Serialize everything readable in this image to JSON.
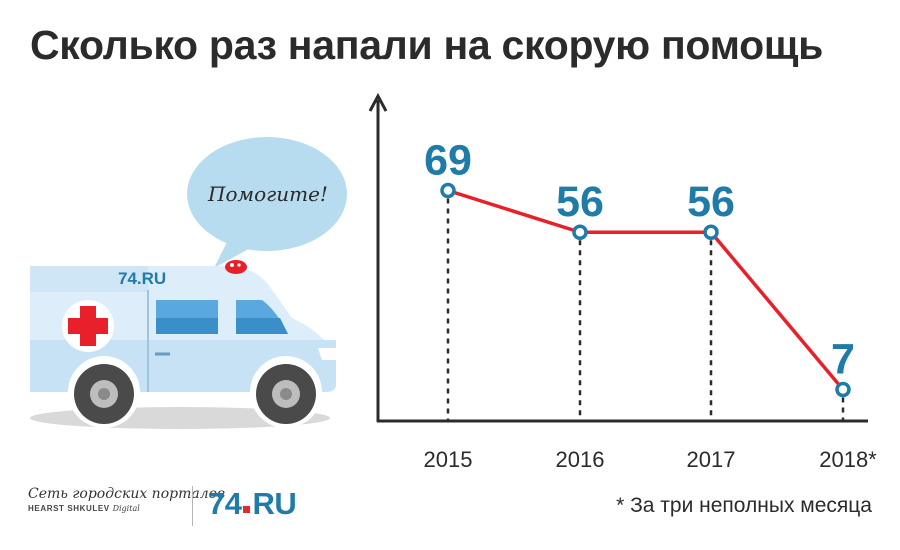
{
  "title": "Сколько раз напали на скорую помощь",
  "speech_bubble": {
    "text": "Помогите!"
  },
  "ambulance": {
    "logo_text": "74.RU"
  },
  "branding": {
    "network_name": "Сеть городских порталов",
    "holding_name": "HEARST SHKULEV",
    "holding_suffix": "Digital",
    "logo_main": "74",
    "logo_tld": "RU"
  },
  "footnote": "* За три неполных месяца",
  "colors": {
    "line": "#e8202a",
    "marker": "#1f7ba8",
    "value_label": "#1f7ba8",
    "axis": "#2b2b2b"
  },
  "chart_data": {
    "type": "line",
    "categories": [
      "2015",
      "2016",
      "2017",
      "2018*"
    ],
    "series": [
      {
        "values": [
          69,
          56,
          56,
          7
        ]
      }
    ],
    "data_labels": [
      "69",
      "56",
      "56",
      "7"
    ],
    "ylim": [
      0,
      100
    ],
    "xlabel": "",
    "ylabel": "",
    "grid": false,
    "drop_lines": "dashed"
  }
}
